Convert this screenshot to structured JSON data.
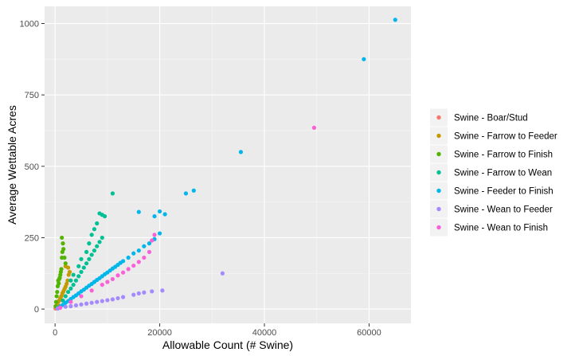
{
  "chart_data": {
    "type": "scatter",
    "title": "",
    "xlabel": "Allowable Count (# Swine)",
    "ylabel": "Average Wettable Acres",
    "xlim": [
      -2000,
      68000
    ],
    "ylim": [
      -50,
      1060
    ],
    "x_ticks": [
      0,
      20000,
      40000,
      60000
    ],
    "x_tick_labels": [
      "0",
      "20000",
      "40000",
      "60000"
    ],
    "y_ticks": [
      0,
      250,
      500,
      750,
      1000
    ],
    "y_tick_labels": [
      "0",
      "250",
      "500",
      "750",
      "1000"
    ],
    "grid": true,
    "legend_position": "right",
    "series": [
      {
        "name": "Swine - Boar/Stud",
        "color": "#F8766D",
        "points": [
          [
            80,
            2
          ],
          [
            150,
            4
          ],
          [
            300,
            7
          ],
          [
            500,
            10
          ],
          [
            700,
            12
          ]
        ]
      },
      {
        "name": "Swine - Farrow to Feeder",
        "color": "#C49A00",
        "points": [
          [
            200,
            8
          ],
          [
            400,
            15
          ],
          [
            600,
            25
          ],
          [
            800,
            30
          ],
          [
            1000,
            38
          ],
          [
            1200,
            45
          ],
          [
            1400,
            55
          ],
          [
            1600,
            62
          ],
          [
            1800,
            70
          ],
          [
            2000,
            78
          ],
          [
            2200,
            88
          ],
          [
            2400,
            100
          ],
          [
            2600,
            120
          ],
          [
            2800,
            130
          ],
          [
            2000,
            150
          ],
          [
            2500,
            145
          ]
        ]
      },
      {
        "name": "Swine - Farrow to Finish",
        "color": "#53B400",
        "points": [
          [
            100,
            10
          ],
          [
            200,
            25
          ],
          [
            300,
            45
          ],
          [
            400,
            60
          ],
          [
            500,
            80
          ],
          [
            600,
            100
          ],
          [
            700,
            90
          ],
          [
            800,
            105
          ],
          [
            900,
            110
          ],
          [
            1000,
            120
          ],
          [
            1100,
            130
          ],
          [
            1200,
            140
          ],
          [
            1300,
            180
          ],
          [
            1400,
            200
          ],
          [
            1500,
            230
          ],
          [
            1300,
            250
          ],
          [
            1600,
            210
          ],
          [
            1800,
            180
          ],
          [
            2000,
            160
          ]
        ]
      },
      {
        "name": "Swine - Farrow to Wean",
        "color": "#00C094",
        "points": [
          [
            1500,
            30
          ],
          [
            2000,
            45
          ],
          [
            2500,
            60
          ],
          [
            3000,
            72
          ],
          [
            3500,
            85
          ],
          [
            4000,
            100
          ],
          [
            4500,
            115
          ],
          [
            5000,
            130
          ],
          [
            5500,
            145
          ],
          [
            6000,
            160
          ],
          [
            6500,
            175
          ],
          [
            7000,
            190
          ],
          [
            7500,
            205
          ],
          [
            8000,
            220
          ],
          [
            8500,
            235
          ],
          [
            9000,
            250
          ],
          [
            6000,
            200
          ],
          [
            6500,
            230
          ],
          [
            7000,
            260
          ],
          [
            7500,
            280
          ],
          [
            8000,
            300
          ],
          [
            8500,
            335
          ],
          [
            9000,
            330
          ],
          [
            9500,
            325
          ],
          [
            11000,
            405
          ],
          [
            5000,
            175
          ],
          [
            4500,
            150
          ],
          [
            3500,
            120
          ],
          [
            3000,
            100
          ]
        ]
      },
      {
        "name": "Swine - Feeder to Finish",
        "color": "#00B6EB",
        "points": [
          [
            500,
            3
          ],
          [
            1000,
            10
          ],
          [
            1500,
            15
          ],
          [
            2000,
            22
          ],
          [
            2500,
            28
          ],
          [
            3000,
            35
          ],
          [
            3500,
            42
          ],
          [
            4000,
            48
          ],
          [
            4500,
            55
          ],
          [
            5000,
            62
          ],
          [
            5500,
            68
          ],
          [
            6000,
            75
          ],
          [
            6500,
            82
          ],
          [
            7000,
            88
          ],
          [
            7500,
            95
          ],
          [
            8000,
            102
          ],
          [
            8500,
            108
          ],
          [
            9000,
            115
          ],
          [
            9500,
            122
          ],
          [
            10000,
            128
          ],
          [
            10500,
            135
          ],
          [
            11000,
            142
          ],
          [
            11500,
            148
          ],
          [
            12000,
            155
          ],
          [
            12500,
            162
          ],
          [
            13000,
            168
          ],
          [
            14000,
            180
          ],
          [
            15000,
            195
          ],
          [
            16000,
            205
          ],
          [
            17000,
            220
          ],
          [
            18000,
            230
          ],
          [
            19000,
            245
          ],
          [
            20000,
            265
          ],
          [
            16000,
            340
          ],
          [
            19000,
            325
          ],
          [
            20000,
            342
          ],
          [
            21000,
            332
          ],
          [
            25000,
            405
          ],
          [
            26500,
            415
          ],
          [
            35500,
            550
          ],
          [
            59000,
            875
          ],
          [
            65000,
            1013
          ]
        ]
      },
      {
        "name": "Swine - Wean to Feeder",
        "color": "#A58AFF",
        "points": [
          [
            500,
            2
          ],
          [
            1000,
            5
          ],
          [
            2000,
            8
          ],
          [
            3000,
            10
          ],
          [
            4000,
            13
          ],
          [
            5000,
            16
          ],
          [
            6000,
            19
          ],
          [
            7000,
            22
          ],
          [
            8000,
            25
          ],
          [
            9000,
            28
          ],
          [
            10000,
            31
          ],
          [
            11000,
            34
          ],
          [
            12000,
            38
          ],
          [
            13000,
            42
          ],
          [
            15000,
            50
          ],
          [
            16000,
            55
          ],
          [
            17000,
            58
          ],
          [
            18500,
            62
          ],
          [
            20500,
            65
          ],
          [
            32000,
            125
          ]
        ]
      },
      {
        "name": "Swine - Wean to Finish",
        "color": "#FB61D7",
        "points": [
          [
            1000,
            5
          ],
          [
            3000,
            25
          ],
          [
            5000,
            45
          ],
          [
            7000,
            65
          ],
          [
            9000,
            85
          ],
          [
            10000,
            95
          ],
          [
            11000,
            105
          ],
          [
            12000,
            118
          ],
          [
            13000,
            128
          ],
          [
            14000,
            140
          ],
          [
            15000,
            152
          ],
          [
            16000,
            165
          ],
          [
            17000,
            180
          ],
          [
            18000,
            200
          ],
          [
            18500,
            240
          ],
          [
            19000,
            260
          ],
          [
            49500,
            635
          ]
        ]
      }
    ]
  }
}
